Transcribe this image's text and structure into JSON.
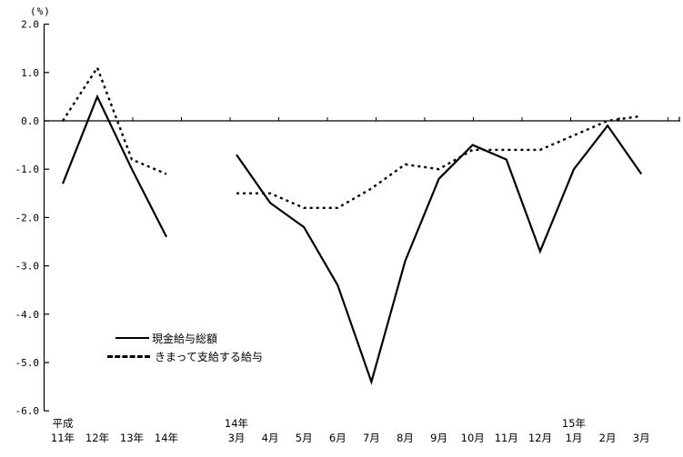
{
  "chart_data": {
    "type": "line",
    "unit_label": "(%)",
    "colors": {
      "line": "#000000",
      "background": "#ffffff"
    },
    "y_axis": {
      "ticks": [
        "2.0",
        "1.0",
        "0.0",
        "-1.0",
        "-2.0",
        "-3.0",
        "-4.0",
        "-5.0",
        "-6.0"
      ],
      "tick_values": [
        2,
        1,
        0,
        -1,
        -2,
        -3,
        -4,
        -5,
        -6
      ],
      "ylim": [
        -6,
        2
      ],
      "grid": false
    },
    "x_axis": {
      "years": [
        {
          "top": "平成",
          "label": "11年"
        },
        {
          "top": "",
          "label": "12年"
        },
        {
          "top": "",
          "label": "13年"
        },
        {
          "top": "",
          "label": "14年"
        }
      ],
      "months": [
        {
          "top": "14年",
          "label": "3月"
        },
        {
          "top": "",
          "label": "4月"
        },
        {
          "top": "",
          "label": "5月"
        },
        {
          "top": "",
          "label": "6月"
        },
        {
          "top": "",
          "label": "7月"
        },
        {
          "top": "",
          "label": "8月"
        },
        {
          "top": "",
          "label": "9月"
        },
        {
          "top": "",
          "label": "10月"
        },
        {
          "top": "",
          "label": "11月"
        },
        {
          "top": "",
          "label": "12月"
        },
        {
          "top": "15年",
          "label": "1月"
        },
        {
          "top": "",
          "label": "2月"
        },
        {
          "top": "",
          "label": "3月"
        }
      ]
    },
    "series": [
      {
        "name": "現金給与総額",
        "style": "solid",
        "yearly": [
          -1.3,
          0.5,
          -1.0,
          -2.4
        ],
        "monthly": [
          -0.7,
          -1.7,
          -2.2,
          -3.4,
          -5.4,
          -2.9,
          -1.2,
          -0.5,
          -0.8,
          -2.7,
          -1.0,
          -0.1,
          -1.1
        ]
      },
      {
        "name": "きまって支給する給与",
        "style": "dotted",
        "yearly": [
          0.0,
          1.1,
          -0.8,
          -1.1
        ],
        "monthly": [
          -1.5,
          -1.5,
          -1.8,
          -1.8,
          -1.4,
          -0.9,
          -1.0,
          -0.6,
          -0.6,
          -0.6,
          -0.3,
          0.0,
          0.1
        ]
      }
    ],
    "legend": {
      "position": "inside-lower-left",
      "items": [
        {
          "label": "現金給与総額",
          "style": "solid"
        },
        {
          "label": "きまって支給する給与",
          "style": "dotted"
        }
      ]
    }
  }
}
